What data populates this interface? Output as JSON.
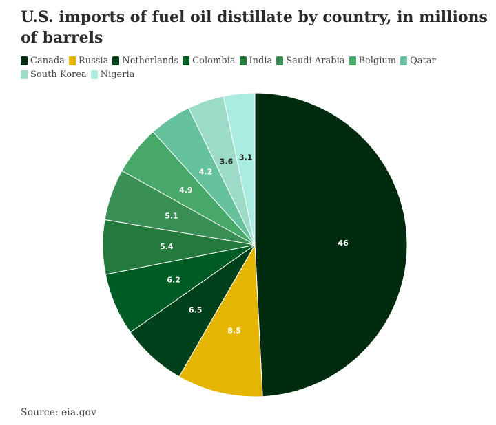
{
  "chart_data": {
    "type": "pie",
    "title": "U.S. imports of fuel oil distillate by country, in millions of barrels",
    "categories": [
      "Canada",
      "Russia",
      "Netherlands",
      "Colombia",
      "India",
      "Saudi Arabia",
      "Belgium",
      "Qatar",
      "South Korea",
      "Nigeria"
    ],
    "values": [
      46,
      8.5,
      6.5,
      6.2,
      5.4,
      5.1,
      4.9,
      4.2,
      3.6,
      3.1
    ],
    "data_labels": [
      "46",
      "8.5",
      "6.5",
      "6.2",
      "5.4",
      "5.1",
      "4.9",
      "4.2",
      "3.6",
      "3.1"
    ],
    "colors": [
      "#002b0f",
      "#e5b503",
      "#00401a",
      "#005c25",
      "#237a3c",
      "#3a8f55",
      "#47a86a",
      "#66c29c",
      "#9cdbc8",
      "#aaede0"
    ],
    "label_colors": [
      "#ffffff",
      "#ffffff",
      "#ffffff",
      "#ffffff",
      "#ffffff",
      "#ffffff",
      "#ffffff",
      "#ffffff",
      "#222222",
      "#222222"
    ],
    "legend_placement": "top-left",
    "start_angle": "12 o'clock, clockwise"
  },
  "source": "Source: eia.gov"
}
